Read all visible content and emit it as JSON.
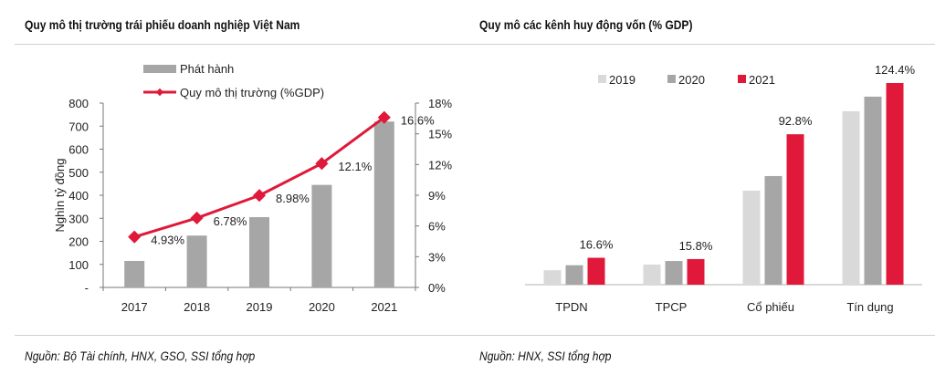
{
  "left": {
    "title": "Quy mô thị trường trái phiếu doanh nghiệp Việt Nam",
    "source": "Nguồn: Bộ Tài chính, HNX, GSO, SSI tổng hợp"
  },
  "right": {
    "title": "Quy mô các kênh huy động vốn (% GDP)",
    "source": "Nguồn: HNX, SSI tổng hợp"
  },
  "chart_data": [
    {
      "type": "bar+line",
      "title": "Quy mô thị trường trái phiếu doanh nghiệp Việt Nam",
      "categories": [
        "2017",
        "2018",
        "2019",
        "2020",
        "2021"
      ],
      "ylabel": "Nghìn tỷ đồng",
      "ylim": [
        0,
        800
      ],
      "yticks": [
        "-",
        "100",
        "200",
        "300",
        "400",
        "500",
        "600",
        "700",
        "800"
      ],
      "y2lim": [
        0,
        18
      ],
      "y2ticks": [
        "0%",
        "3%",
        "6%",
        "9%",
        "12%",
        "15%",
        "18%"
      ],
      "legend_position": "top-center",
      "series": [
        {
          "name": "Phát hành",
          "type": "bar",
          "color": "#a6a6a6",
          "values": [
            115,
            225,
            305,
            445,
            720
          ]
        },
        {
          "name": "Quy mô thị trường (%GDP)",
          "type": "line",
          "axis": "right",
          "color": "#e0193a",
          "values": [
            4.93,
            6.78,
            8.98,
            12.1,
            16.6
          ],
          "labels": [
            "4.93%",
            "6.78%",
            "8.98%",
            "12.1%",
            "16.6%"
          ]
        }
      ]
    },
    {
      "type": "bar",
      "title": "Quy mô các kênh huy động vốn (% GDP)",
      "categories": [
        "TPDN",
        "TPCP",
        "Cổ phiếu",
        "Tín dụng"
      ],
      "ylim": [
        0,
        130
      ],
      "legend_position": "top-left",
      "series": [
        {
          "name": "2019",
          "color": "#d9d9d9",
          "values": [
            8.9,
            12.4,
            58,
            107
          ]
        },
        {
          "name": "2020",
          "color": "#a6a6a6",
          "values": [
            12,
            14.6,
            67,
            116
          ]
        },
        {
          "name": "2021",
          "color": "#e0193a",
          "values": [
            16.6,
            15.8,
            92.8,
            124.4
          ],
          "labels": [
            "16.6%",
            "15.8%",
            "92.8%",
            "124.4%"
          ]
        }
      ]
    }
  ]
}
